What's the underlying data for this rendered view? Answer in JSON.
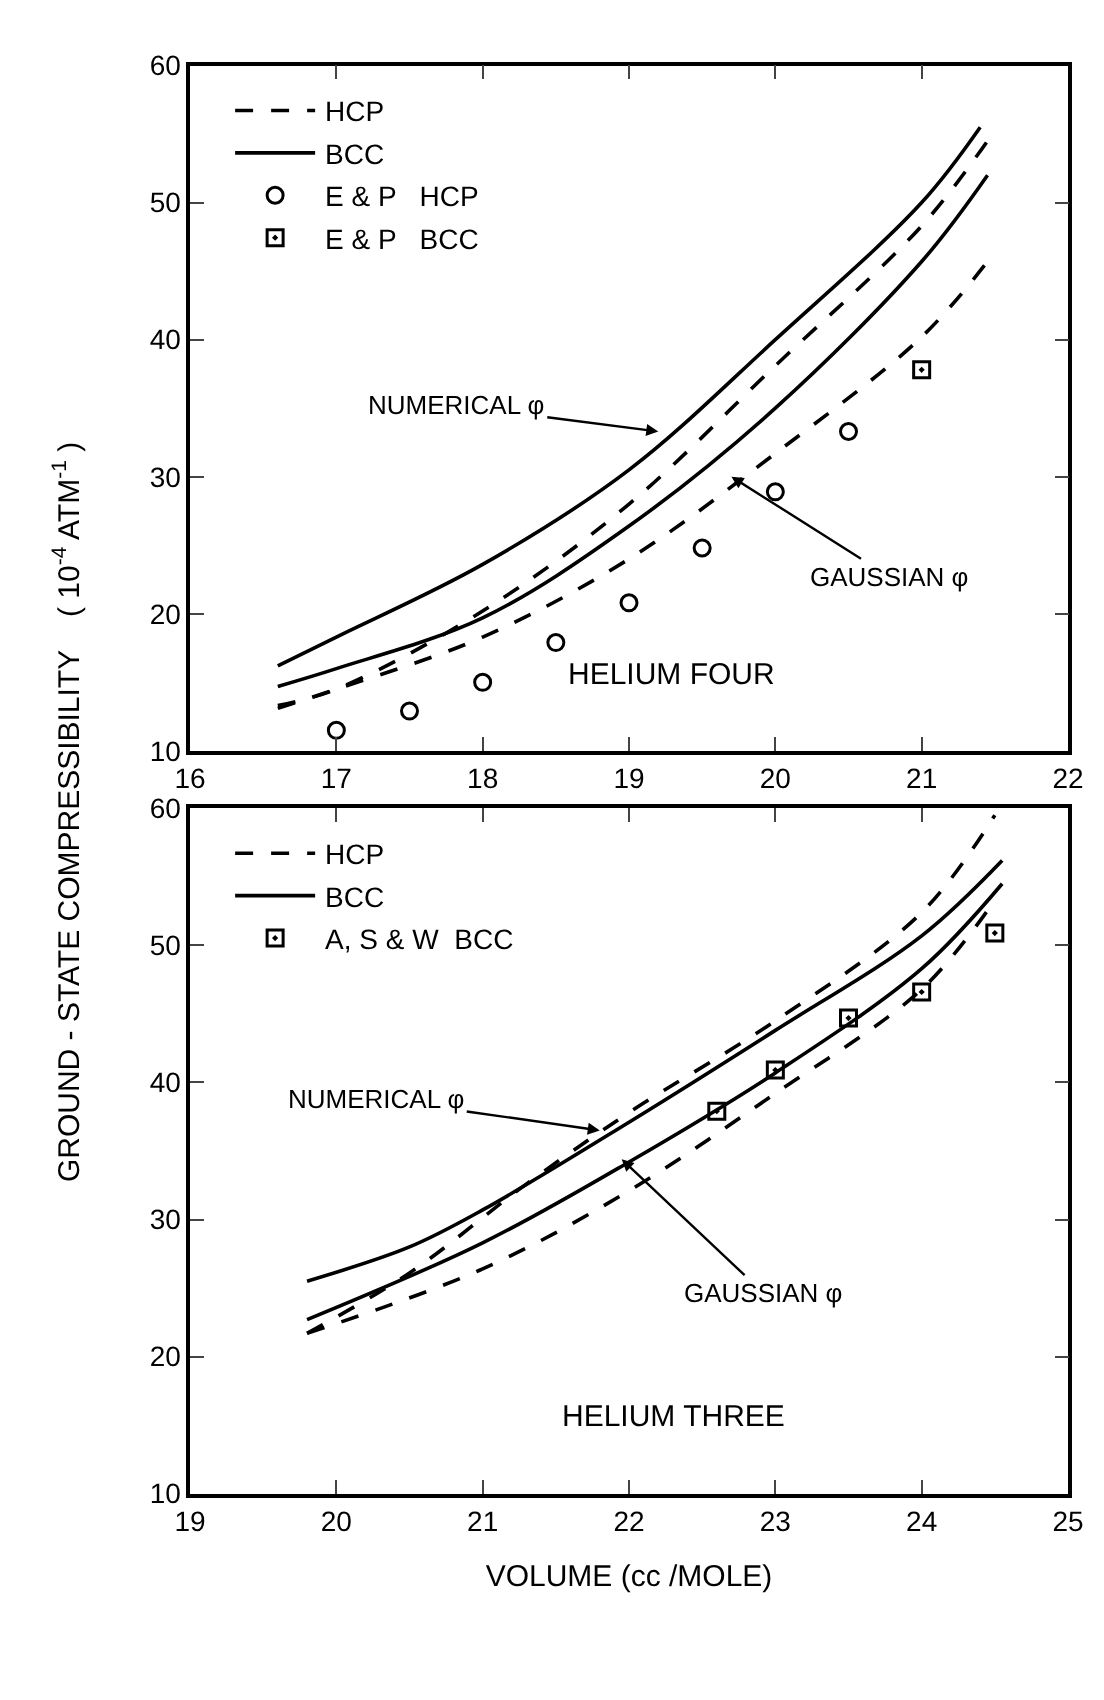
{
  "chart_data": [
    {
      "type": "line",
      "ylabel": "GROUND - STATE COMPRESSIBILITY    ( 10$^{-4}$ ATM$^{-1}$ )",
      "xlim": [
        16,
        22
      ],
      "xticks": [
        16,
        17,
        18,
        19,
        20,
        21,
        22
      ],
      "ylim": [
        10,
        60
      ],
      "yticks": [
        10,
        20,
        30,
        40,
        50,
        60
      ],
      "legend": "top left",
      "series": [
        {
          "name": "HCP",
          "color": "#000000",
          "line_style": "dashed",
          "x": [
            16.6,
            17,
            18,
            19,
            20,
            21,
            21.45
          ],
          "values": [
            13.3,
            14.5,
            20.2,
            28,
            38.1,
            48.3,
            54.5
          ]
        },
        {
          "name": "BCC",
          "color": "#000000",
          "line_style": "solid",
          "x": [
            16.6,
            17,
            18,
            19,
            20,
            21,
            21.4
          ],
          "values": [
            16.2,
            18.3,
            23.6,
            30.5,
            40,
            50,
            55.5
          ]
        },
        {
          "color": "#000000",
          "line_style": "dashed",
          "x": [
            16.6,
            17,
            18,
            19,
            20,
            21,
            21.45
          ],
          "values": [
            13.1,
            14.5,
            18.3,
            24,
            31.7,
            40.2,
            45.7
          ]
        },
        {
          "color": "#000000",
          "line_style": "solid",
          "x": [
            16.6,
            17,
            18,
            19,
            20,
            21,
            21.45
          ],
          "values": [
            14.7,
            16,
            19.7,
            26.4,
            35,
            45.7,
            52
          ]
        },
        {
          "name": "E & P   HCP",
          "type": "scatter",
          "marker": "circle",
          "color": "#000000",
          "x": [
            17,
            17.5,
            18,
            18.5,
            19,
            19.5,
            20,
            20.5
          ],
          "values": [
            11.5,
            12.9,
            15,
            17.9,
            20.8,
            24.8,
            28.9,
            33.3
          ]
        },
        {
          "name": "E & P   BCC",
          "type": "scatter",
          "marker": "square",
          "color": "#000000",
          "x": [
            21
          ],
          "values": [
            37.8
          ]
        }
      ],
      "annotations": [
        {
          "text": "NUMERICAL φ",
          "x": 19.2,
          "y": 33.3
        },
        {
          "text": "GAUSSIAN φ",
          "x": 19.7,
          "y": 30
        },
        "HELIUM FOUR"
      ]
    },
    {
      "type": "line",
      "xlabel": "VOLUME (cc /MOLE)",
      "xlim": [
        19,
        25
      ],
      "xticks": [
        19,
        20,
        21,
        22,
        23,
        24,
        25
      ],
      "ylim": [
        10,
        60
      ],
      "yticks": [
        10,
        20,
        30,
        40,
        50,
        60
      ],
      "legend": "top left",
      "series": [
        {
          "name": "HCP",
          "color": "#000000",
          "line_style": "dashed",
          "x": [
            19.8,
            20.5,
            21.3,
            22,
            23,
            24,
            24.5
          ],
          "values": [
            21.7,
            26.1,
            32.6,
            37.8,
            44.5,
            52.4,
            59.5
          ]
        },
        {
          "name": "BCC",
          "color": "#000000",
          "line_style": "solid",
          "x": [
            19.8,
            20.5,
            21,
            22,
            23,
            24,
            24.55
          ],
          "values": [
            25.5,
            28,
            30.7,
            37.1,
            43.8,
            50.7,
            56.2
          ]
        },
        {
          "color": "#000000",
          "line_style": "dashed",
          "x": [
            19.8,
            21,
            22,
            23,
            24,
            24.5
          ],
          "values": [
            21.7,
            26.4,
            32.1,
            39.2,
            46.8,
            53.3
          ]
        },
        {
          "color": "#000000",
          "line_style": "solid",
          "x": [
            19.8,
            21,
            22,
            23,
            24,
            24.55
          ],
          "values": [
            22.7,
            28.3,
            34.2,
            40.7,
            48.3,
            54.5
          ]
        },
        {
          "name": "A, S & W  BCC",
          "type": "scatter",
          "marker": "square",
          "color": "#000000",
          "x": [
            22.6,
            23,
            23.5,
            24,
            24.5
          ],
          "values": [
            37.9,
            40.9,
            44.7,
            46.6,
            50.9
          ]
        }
      ],
      "annotations": [
        {
          "text": "NUMERICAL φ",
          "x": 21.8,
          "y": 36.5
        },
        {
          "text": "GAUSSIAN φ",
          "x": 21.95,
          "y": 34.4
        },
        "HELIUM THREE"
      ]
    }
  ]
}
